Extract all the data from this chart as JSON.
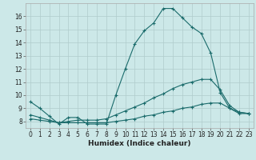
{
  "xlabel": "Humidex (Indice chaleur)",
  "background_color": "#cce8e8",
  "grid_color": "#b0cccc",
  "line_color": "#1a6b6b",
  "xlim": [
    -0.5,
    23.5
  ],
  "ylim": [
    7.5,
    17.0
  ],
  "xticks": [
    0,
    1,
    2,
    3,
    4,
    5,
    6,
    7,
    8,
    9,
    10,
    11,
    12,
    13,
    14,
    15,
    16,
    17,
    18,
    19,
    20,
    21,
    22,
    23
  ],
  "yticks": [
    8,
    9,
    10,
    11,
    12,
    13,
    14,
    15,
    16
  ],
  "line1_x": [
    0,
    1,
    2,
    3,
    4,
    5,
    6,
    7,
    8,
    9,
    10,
    11,
    12,
    13,
    14,
    15,
    16,
    17,
    18,
    19,
    20,
    21,
    22,
    23
  ],
  "line1_y": [
    9.5,
    9.0,
    8.4,
    7.8,
    8.3,
    8.3,
    7.8,
    7.8,
    7.8,
    10.0,
    12.0,
    13.9,
    14.9,
    15.5,
    16.6,
    16.6,
    15.9,
    15.2,
    14.7,
    13.2,
    10.2,
    9.0,
    8.6,
    8.6
  ],
  "line2_x": [
    0,
    1,
    2,
    3,
    4,
    5,
    6,
    7,
    8,
    9,
    10,
    11,
    12,
    13,
    14,
    15,
    16,
    17,
    18,
    19,
    20,
    21,
    22,
    23
  ],
  "line2_y": [
    8.5,
    8.3,
    8.1,
    7.9,
    8.0,
    8.1,
    8.1,
    8.1,
    8.2,
    8.5,
    8.8,
    9.1,
    9.4,
    9.8,
    10.1,
    10.5,
    10.8,
    11.0,
    11.2,
    11.2,
    10.4,
    9.2,
    8.7,
    8.6
  ],
  "line3_x": [
    0,
    1,
    2,
    3,
    4,
    5,
    6,
    7,
    8,
    9,
    10,
    11,
    12,
    13,
    14,
    15,
    16,
    17,
    18,
    19,
    20,
    21,
    22,
    23
  ],
  "line3_y": [
    8.2,
    8.1,
    8.0,
    7.9,
    7.9,
    7.9,
    7.9,
    7.9,
    7.9,
    8.0,
    8.1,
    8.2,
    8.4,
    8.5,
    8.7,
    8.8,
    9.0,
    9.1,
    9.3,
    9.4,
    9.4,
    9.0,
    8.7,
    8.6
  ],
  "tick_fontsize": 5.5,
  "xlabel_fontsize": 6.5,
  "marker_size": 3,
  "linewidth": 0.8
}
